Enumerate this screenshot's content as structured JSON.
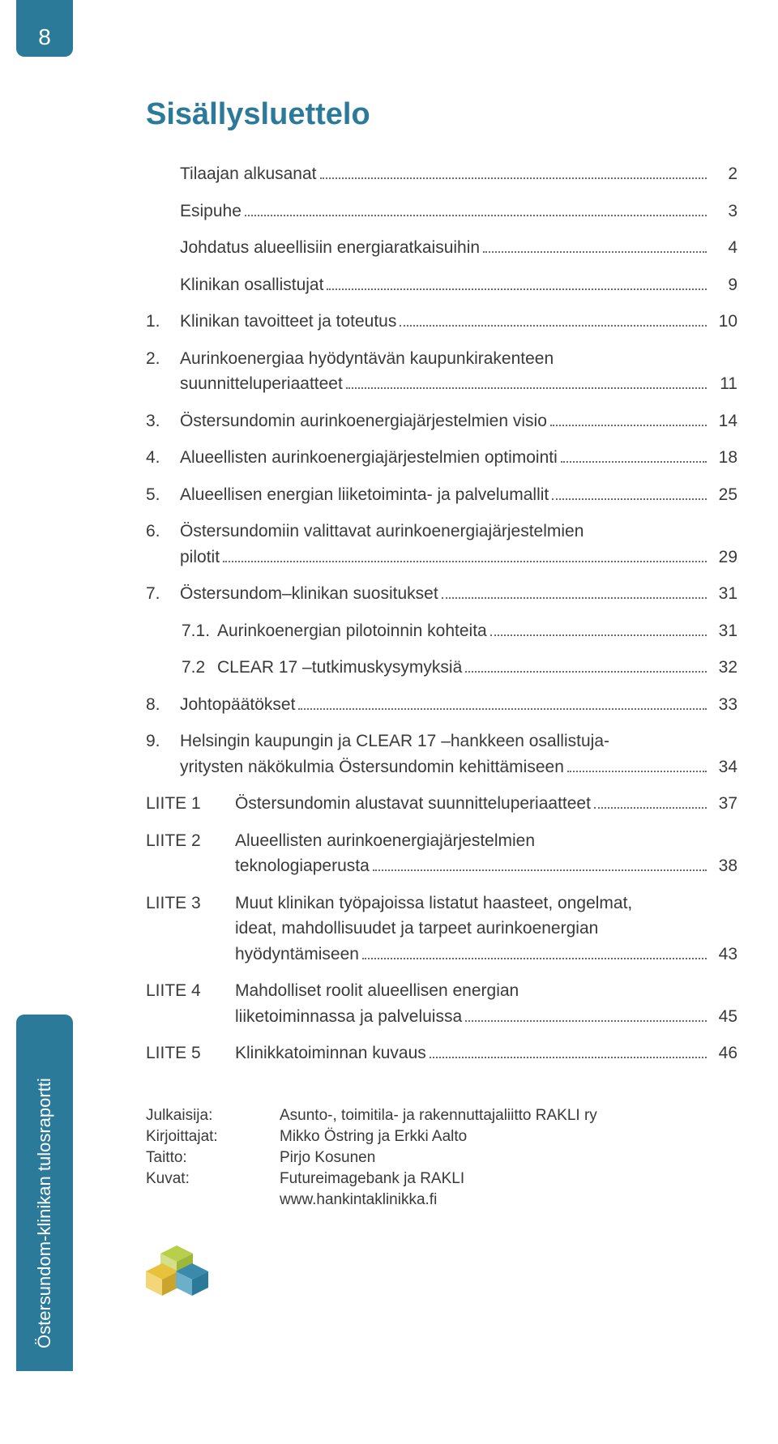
{
  "colors": {
    "teal": "#2b7a99",
    "text": "#3a3a3a",
    "background": "#ffffff",
    "dot_leader": "#6a6a6a",
    "icon_green": "#b7cf4b",
    "icon_yellow": "#e9c23c",
    "icon_blue": "#2b7a99"
  },
  "page_number": "8",
  "side_tab": "Östersundom-klinikan tulosraportti",
  "title": "Sisällysluettelo",
  "toc": [
    {
      "num": "",
      "text": "Tilaajan alkusanat",
      "page": "2"
    },
    {
      "num": "",
      "text": "Esipuhe",
      "page": "3"
    },
    {
      "num": "",
      "text": "Johdatus alueellisiin energiaratkaisuihin",
      "page": "4"
    },
    {
      "num": "",
      "text": "Klinikan osallistujat",
      "page": "9"
    },
    {
      "num": "1.",
      "text": "Klinikan tavoitteet ja toteutus",
      "page": "10"
    },
    {
      "num": "2.",
      "text": "Aurinkoenergiaa hyödyntävän kaupunkirakenteen",
      "text2": "suunnitteluperiaatteet",
      "page": "11"
    },
    {
      "num": "3.",
      "text": "Östersundomin aurinkoenergiajärjestelmien visio",
      "page": "14"
    },
    {
      "num": "4.",
      "text": "Alueellisten aurinkoenergiajärjestelmien optimointi",
      "page": "18"
    },
    {
      "num": "5.",
      "text": "Alueellisen energian liiketoiminta- ja palvelumallit",
      "page": "25"
    },
    {
      "num": "6.",
      "text": "Östersundomiin valittavat aurinkoenergiajärjestelmien",
      "text2": "pilotit",
      "page": "29"
    },
    {
      "num": "7.",
      "text": "Östersundom–klinikan suositukset",
      "page": "31"
    },
    {
      "sub": true,
      "num": "7.1.",
      "text": "Aurinkoenergian pilotoinnin kohteita",
      "page": "31"
    },
    {
      "sub": true,
      "num": "7.2",
      "text": "CLEAR 17 –tutkimuskysymyksiä",
      "page": "32"
    },
    {
      "num": "8.",
      "text": "Johtopäätökset",
      "page": "33"
    },
    {
      "num": "9.",
      "text": "Helsingin kaupungin ja CLEAR 17 –hankkeen osallistuja-",
      "text2": "yritysten näkökulmia Östersundomin kehittämiseen",
      "page": "34"
    },
    {
      "attach": "LIITE 1",
      "text": "Östersundomin alustavat suunnitteluperiaatteet",
      "page": "37"
    },
    {
      "attach": "LIITE 2",
      "text": "Alueellisten aurinkoenergiajärjestelmien",
      "text2": "teknologiaperusta",
      "page": "38"
    },
    {
      "attach": "LIITE 3",
      "text": "Muut klinikan työpajoissa listatut haasteet, ongelmat,",
      "text2_no_page": "ideat, mahdollisuudet ja tarpeet aurinkoenergian",
      "text3": "hyödyntämiseen",
      "page": "43"
    },
    {
      "attach": "LIITE 4",
      "text": "Mahdolliset roolit alueellisen energian",
      "text2": "liiketoiminnassa ja palveluissa",
      "page": "45"
    },
    {
      "attach": "LIITE 5",
      "text": "Klinikkatoiminnan kuvaus",
      "page": "46"
    }
  ],
  "credits": [
    {
      "label": "Julkaisija:",
      "value": "Asunto-, toimitila- ja rakennuttajaliitto RAKLI ry"
    },
    {
      "label": "Kirjoittajat:",
      "value": "Mikko Östring ja Erkki Aalto"
    },
    {
      "label": "Taitto:",
      "value": "Pirjo Kosunen"
    },
    {
      "label": "Kuvat:",
      "value": "Futureimagebank ja RAKLI"
    },
    {
      "label": "",
      "value": "www.hankintaklinikka.fi"
    }
  ]
}
